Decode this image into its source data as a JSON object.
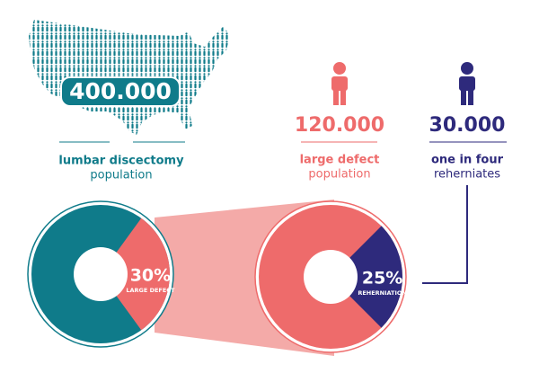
{
  "stats": [
    {
      "number": "400.000",
      "label_bold": "lumbar discectomy",
      "label": "population"
    },
    {
      "number": "120.000",
      "label_bold": "large defect",
      "label": "population"
    },
    {
      "number": "30.000",
      "label_bold": "one in four",
      "label": "reherniates"
    }
  ],
  "pies": [
    {
      "value": 30,
      "value_label": "30%",
      "label": "LARGE DEFECT",
      "base_color": "#0f7b8a",
      "slice_color": "#ee6b6b"
    },
    {
      "value": 25,
      "value_label": "25%",
      "label": "REHERNIATION",
      "base_color": "#ee6b6b",
      "slice_color": "#2e2a7c"
    }
  ]
}
